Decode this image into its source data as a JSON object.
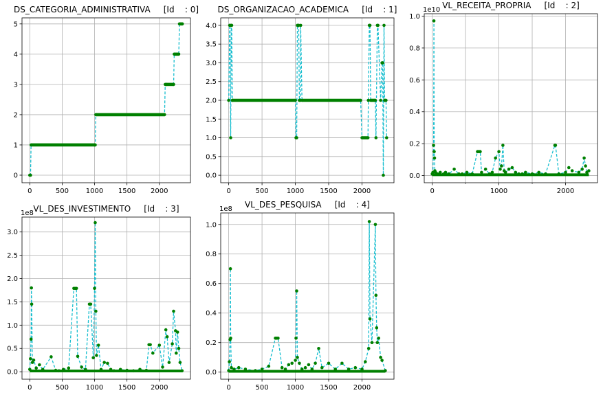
{
  "figure": {
    "background": "#ffffff",
    "line_color": "#17becf",
    "marker_color": "#008000",
    "grid": true
  },
  "chart_data": [
    {
      "type": "line",
      "title": "DS_CATEGORIA_ADMINISTRATIVA     [Id    : 0]",
      "xlim": [
        -120,
        2480
      ],
      "ylim": [
        -0.25,
        5.2
      ],
      "xticks": [
        0,
        500,
        1000,
        1500,
        2000
      ],
      "xtick_labels": [
        "0",
        "500",
        "1000",
        "1500",
        "2000"
      ],
      "yticks": [
        0,
        1,
        2,
        3,
        4,
        5
      ],
      "ytick_labels": [
        "0",
        "1",
        "2",
        "3",
        "4",
        "5"
      ],
      "multiplier": "",
      "x": [
        0,
        12,
        20,
        1000,
        1010,
        1020,
        2080,
        2090,
        2110,
        2220,
        2230,
        2300,
        2310,
        2340,
        2355
      ],
      "y": [
        0,
        0,
        1,
        1,
        1,
        2,
        2,
        3,
        3,
        3,
        4,
        4,
        5,
        5,
        5
      ]
    },
    {
      "type": "line",
      "title": "DS_ORGANIZACAO_ACADEMICA     [Id    : 1]",
      "xlim": [
        -120,
        2480
      ],
      "ylim": [
        -0.2,
        4.2
      ],
      "xticks": [
        0,
        500,
        1000,
        1500,
        2000
      ],
      "xtick_labels": [
        "0",
        "500",
        "1000",
        "1500",
        "2000"
      ],
      "yticks": [
        0,
        0.5,
        1,
        1.5,
        2,
        2.5,
        3,
        3.5,
        4
      ],
      "ytick_labels": [
        "0.0",
        "0.5",
        "1.0",
        "1.5",
        "2.0",
        "2.5",
        "3.0",
        "3.5",
        "4.0"
      ],
      "multiplier": "",
      "x": [
        0,
        15,
        20,
        30,
        40,
        45,
        55,
        60,
        1000,
        1010,
        1020,
        1030,
        1050,
        1060,
        1075,
        1080,
        1100,
        1980,
        2000,
        2090,
        2095,
        2110,
        2120,
        2130,
        2200,
        2210,
        2230,
        2240,
        2280,
        2300,
        2310,
        2320,
        2330,
        2340,
        2360,
        2370
      ],
      "y": [
        2,
        4,
        4,
        1,
        4,
        4,
        2,
        2,
        2,
        1,
        1,
        4,
        4,
        2,
        2,
        4,
        2,
        2,
        1,
        1,
        2,
        4,
        4,
        2,
        2,
        1,
        4,
        4,
        2,
        3,
        3,
        0,
        4,
        2,
        2,
        1
      ]
    },
    {
      "type": "scatter",
      "title": "VL_RECEITA_PROPRIA     [Id    : 2]",
      "xlim": [
        -120,
        2480
      ],
      "ylim": [
        -0.045,
        1.015
      ],
      "xticks": [
        0,
        1000,
        2000
      ],
      "xtick_labels": [
        "0",
        "1000",
        "2000"
      ],
      "xticks_minor": [
        500,
        1500
      ],
      "yticks": [
        0,
        0.2,
        0.4,
        0.6,
        0.8,
        1.0
      ],
      "ytick_labels": [
        "0.0",
        "0.2",
        "0.4",
        "0.6",
        "0.8",
        "1.0"
      ],
      "multiplier": "1e10",
      "x": [
        0,
        10,
        20,
        25,
        30,
        35,
        40,
        50,
        80,
        120,
        170,
        200,
        250,
        330,
        400,
        450,
        520,
        600,
        680,
        700,
        720,
        740,
        800,
        860,
        900,
        950,
        1000,
        1020,
        1040,
        1060,
        1080,
        1100,
        1150,
        1200,
        1250,
        1300,
        1350,
        1400,
        1500,
        1600,
        1700,
        1840,
        1850,
        1900,
        2000,
        2050,
        2100,
        2200,
        2250,
        2280,
        2300,
        2320,
        2350
      ],
      "y": [
        0.01,
        0.02,
        0.19,
        0.97,
        0.15,
        0.11,
        0.03,
        0.02,
        0.01,
        0.02,
        0.01,
        0.02,
        0.01,
        0.04,
        0.01,
        0.01,
        0.02,
        0.01,
        0.15,
        0.15,
        0.15,
        0.02,
        0.04,
        0.01,
        0.02,
        0.11,
        0.15,
        0.04,
        0.06,
        0.19,
        0.03,
        0.02,
        0.04,
        0.05,
        0.02,
        0.01,
        0.01,
        0.02,
        0.01,
        0.02,
        0.01,
        0.19,
        0.19,
        0.01,
        0.02,
        0.05,
        0.03,
        0.02,
        0.04,
        0.11,
        0.06,
        0.02,
        0.03
      ]
    },
    {
      "type": "scatter",
      "title": "VL_DES_INVESTIMENTO     [Id    : 3]",
      "xlim": [
        -120,
        2480
      ],
      "ylim": [
        -0.16,
        3.32
      ],
      "xticks": [
        0,
        500,
        1000,
        1500,
        2000
      ],
      "xtick_labels": [
        "0",
        "500",
        "1000",
        "1500",
        "2000"
      ],
      "yticks": [
        0,
        0.5,
        1.0,
        1.5,
        2.0,
        2.5,
        3.0
      ],
      "ytick_labels": [
        "0.0",
        "0.5",
        "1.0",
        "1.5",
        "2.0",
        "2.5",
        "3.0"
      ],
      "multiplier": "1e8",
      "x": [
        0,
        10,
        20,
        25,
        30,
        40,
        60,
        100,
        150,
        200,
        330,
        400,
        450,
        520,
        600,
        680,
        700,
        720,
        740,
        800,
        860,
        920,
        940,
        980,
        1000,
        1010,
        1020,
        1030,
        1060,
        1100,
        1150,
        1200,
        1250,
        1300,
        1400,
        1500,
        1600,
        1700,
        1800,
        1840,
        1860,
        1900,
        2000,
        2050,
        2100,
        2120,
        2150,
        2200,
        2220,
        2250,
        2260,
        2280,
        2300,
        2320,
        2350
      ],
      "y": [
        0.05,
        0.28,
        0.7,
        1.8,
        1.45,
        0.2,
        0.25,
        0.08,
        0.15,
        0.05,
        0.32,
        0.03,
        0.02,
        0.05,
        0.08,
        1.79,
        1.79,
        1.79,
        0.33,
        0.1,
        0.05,
        1.45,
        1.45,
        0.3,
        1.79,
        3.2,
        1.3,
        0.35,
        0.57,
        0.05,
        0.2,
        0.18,
        0.05,
        0.02,
        0.05,
        0.03,
        0.02,
        0.05,
        0.03,
        0.58,
        0.58,
        0.4,
        0.57,
        0.1,
        0.9,
        0.75,
        0.2,
        0.6,
        1.3,
        0.88,
        0.4,
        0.85,
        0.5,
        0.2,
        0.02
      ]
    },
    {
      "type": "scatter",
      "title": "VL_DES_PESQUISA     [Id    : 4]",
      "xlim": [
        -120,
        2480
      ],
      "ylim": [
        -0.048,
        1.078
      ],
      "xticks": [
        0,
        500,
        1000,
        1500,
        2000
      ],
      "xtick_labels": [
        "0",
        "500",
        "1000",
        "1500",
        "2000"
      ],
      "yticks": [
        0,
        0.2,
        0.4,
        0.6,
        0.8,
        1.0
      ],
      "ytick_labels": [
        "0.0",
        "0.2",
        "0.4",
        "0.6",
        "0.8",
        "1.0"
      ],
      "multiplier": "1e8",
      "x": [
        0,
        10,
        20,
        25,
        30,
        40,
        80,
        150,
        250,
        400,
        500,
        600,
        700,
        720,
        740,
        800,
        850,
        900,
        950,
        1000,
        1010,
        1020,
        1030,
        1060,
        1100,
        1150,
        1200,
        1250,
        1300,
        1350,
        1400,
        1500,
        1600,
        1700,
        1800,
        1900,
        2000,
        2050,
        2100,
        2110,
        2120,
        2150,
        2200,
        2210,
        2220,
        2230,
        2250,
        2280,
        2300,
        2350
      ],
      "y": [
        0.01,
        0.07,
        0.22,
        0.7,
        0.23,
        0.03,
        0.02,
        0.03,
        0.02,
        0.01,
        0.02,
        0.04,
        0.23,
        0.23,
        0.23,
        0.03,
        0.02,
        0.05,
        0.06,
        0.08,
        0.23,
        0.55,
        0.1,
        0.06,
        0.02,
        0.03,
        0.05,
        0.02,
        0.06,
        0.16,
        0.03,
        0.06,
        0.02,
        0.06,
        0.02,
        0.03,
        0.02,
        0.07,
        0.16,
        1.02,
        0.36,
        0.2,
        1.0,
        0.52,
        0.3,
        0.2,
        0.23,
        0.1,
        0.08,
        0.01
      ]
    }
  ]
}
